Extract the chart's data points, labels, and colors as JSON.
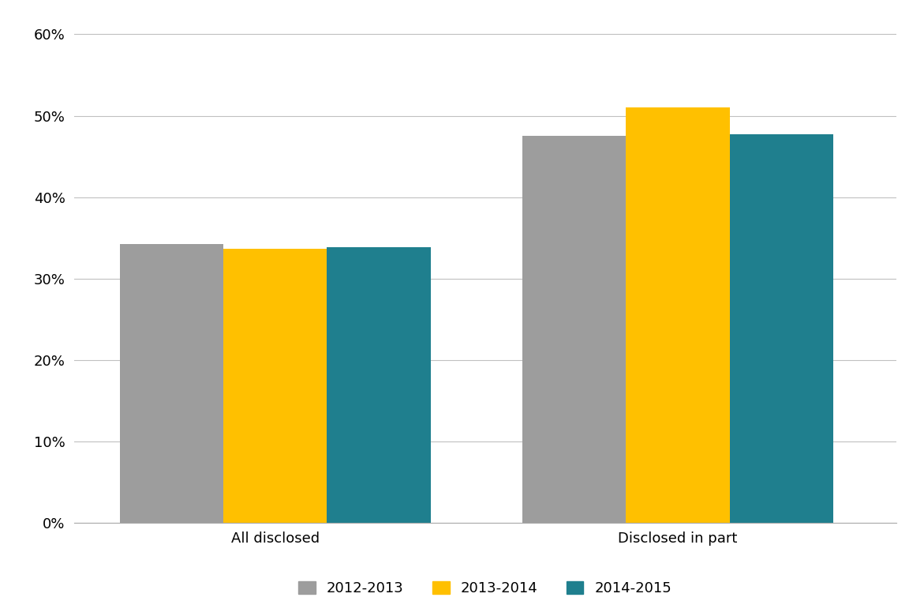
{
  "categories": [
    "All disclosed",
    "Disclosed in part"
  ],
  "series": {
    "2012-2013": [
      34.2,
      47.5
    ],
    "2013-2014": [
      33.7,
      51.0
    ],
    "2014-2015": [
      33.9,
      47.7
    ]
  },
  "colors": {
    "2012-2013": "#9d9d9d",
    "2013-2014": "#ffc000",
    "2014-2015": "#1f7f8e"
  },
  "ylim": [
    0,
    0.62
  ],
  "yticks": [
    0.0,
    0.1,
    0.2,
    0.3,
    0.4,
    0.5,
    0.6
  ],
  "ytick_labels": [
    "0%",
    "10%",
    "20%",
    "30%",
    "40%",
    "50%",
    "60%"
  ],
  "background_color": "#ffffff",
  "grid_color": "#c0c0c0",
  "bar_width": 0.18,
  "group_centers": [
    0.3,
    1.0
  ]
}
